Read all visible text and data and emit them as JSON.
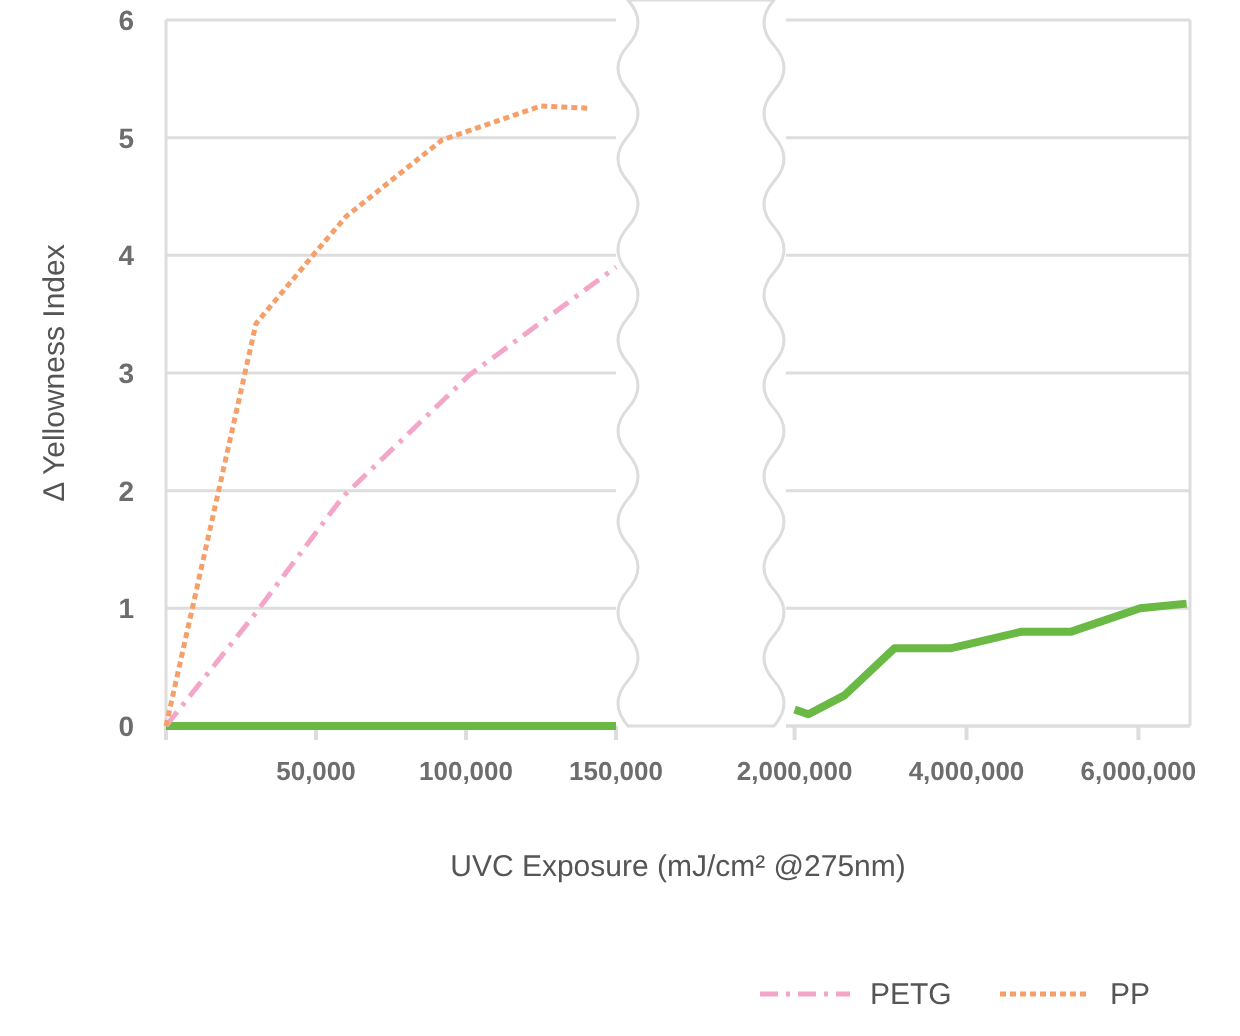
{
  "chart_data": [
    {
      "type": "line",
      "ylabel": "Δ Yellowness Index",
      "xlabel": "UVC Exposure (mJ/cm² @275nm)",
      "xlim": [
        0,
        150000
      ],
      "xticks": [
        {
          "value": 0,
          "label": null
        },
        {
          "value": 50000,
          "label": "50,000"
        },
        {
          "value": 100000,
          "label": "100,000"
        },
        {
          "value": 150000,
          "label": "150,000"
        }
      ],
      "ylim": [
        0,
        6
      ],
      "yticks": [
        0,
        1,
        2,
        3,
        4,
        5,
        6
      ],
      "grid": "y",
      "legend": "bottom",
      "series": [
        {
          "color": "#6ab945",
          "line_style": "solid",
          "x": [
            0,
            150000
          ],
          "values": [
            0,
            0
          ]
        },
        {
          "name": "PETG",
          "color": "#f4a6c8",
          "line_style": "dashed",
          "x": [
            0,
            29000,
            59000,
            101000,
            150000
          ],
          "values": [
            0,
            0.93,
            1.95,
            2.98,
            3.9
          ]
        },
        {
          "name": "PP",
          "color": "#f5a06b",
          "line_style": "dotted",
          "x": [
            0,
            30000,
            49000,
            60000,
            92000,
            125000,
            141000
          ],
          "values": [
            0,
            3.42,
            4.0,
            4.33,
            4.98,
            5.27,
            5.25
          ]
        }
      ]
    },
    {
      "type": "line",
      "xlim": [
        1900000,
        6600000
      ],
      "xticks": [
        {
          "value": 2000000,
          "label": "2,000,000"
        },
        {
          "value": 4000000,
          "label": "4,000,000"
        },
        {
          "value": 6000000,
          "label": "6,000,000"
        }
      ],
      "ylim": [
        0,
        6
      ],
      "yticks": [
        0,
        1,
        2,
        3,
        4,
        5,
        6
      ],
      "grid": "y",
      "tick_labels": "x",
      "series": [
        {
          "color": "#6ab945",
          "line_style": "solid",
          "x": [
            2000000,
            2160000,
            2580000,
            3160000,
            3810000,
            4050000,
            4630000,
            5210000,
            6020000,
            6560000
          ],
          "values": [
            0.14,
            0.1,
            0.26,
            0.66,
            0.66,
            0.7,
            0.8,
            0.8,
            1.0,
            1.04
          ]
        }
      ]
    }
  ]
}
